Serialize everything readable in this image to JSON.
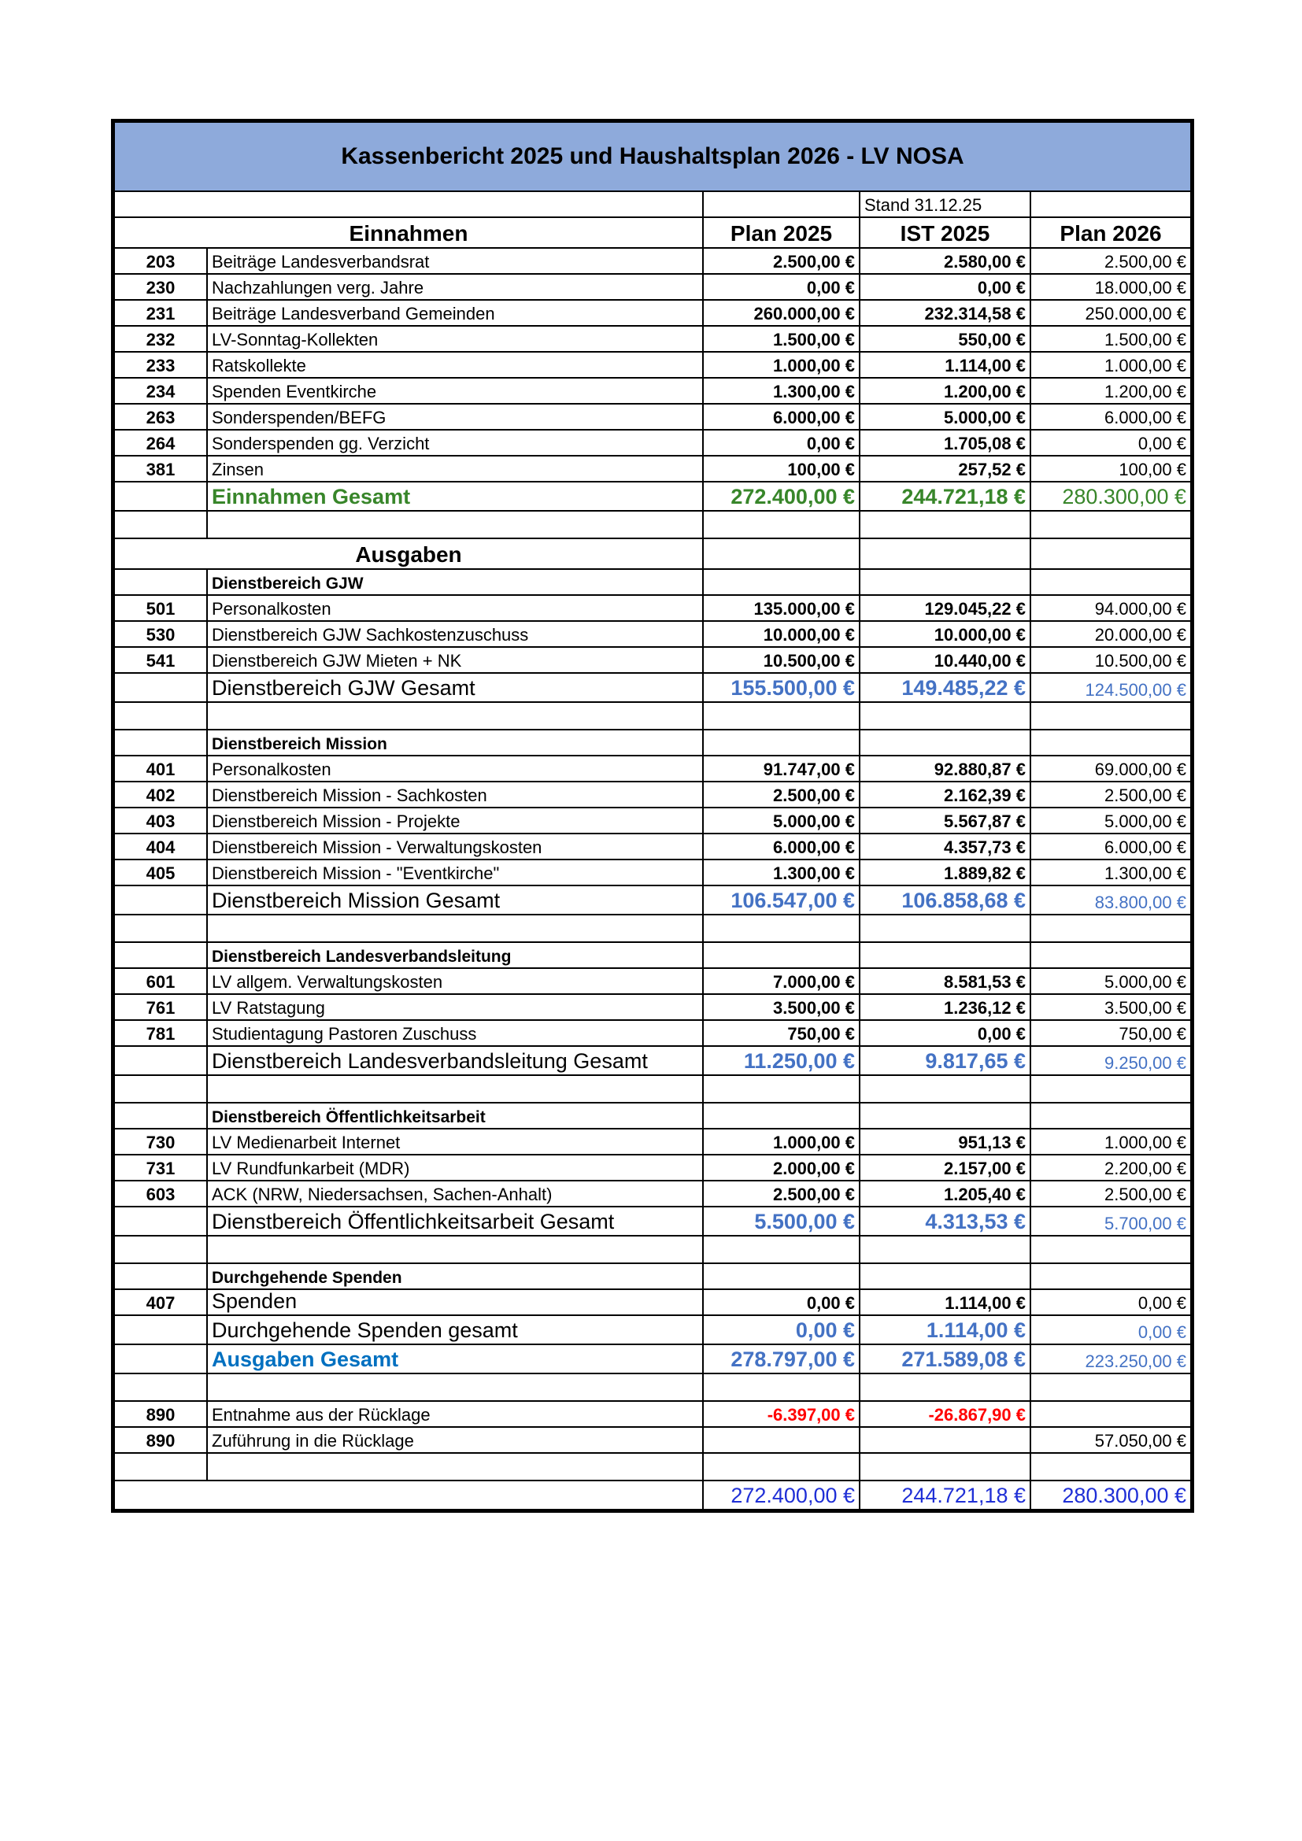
{
  "title": "Kassenbericht 2025 und Haushaltsplan 2026 - LV NOSA",
  "stand": "Stand 31.12.25",
  "columns": {
    "plan2025": "Plan 2025",
    "ist2025": "IST 2025",
    "plan2026": "Plan 2026"
  },
  "colors": {
    "header_bg": "#8eaadb",
    "income_total": "#38862a",
    "subtotal": "#4472c4",
    "expense_total_label": "#0070c0",
    "negative": "#ff0000",
    "grand_total": "#1f2fd6"
  },
  "rows": [
    {
      "type": "hdr",
      "desc": "Einnahmen",
      "plan2025": "Plan 2025",
      "ist2025": "IST 2025",
      "plan2026": "Plan 2026"
    },
    {
      "type": "item",
      "code": "203",
      "desc": "Beiträge Landesverbandsrat",
      "plan2025": "2.500,00 €",
      "ist2025": "2.580,00 €",
      "plan2026": "2.500,00 €"
    },
    {
      "type": "item",
      "code": "230",
      "desc": "Nachzahlungen verg. Jahre",
      "plan2025": "0,00 €",
      "ist2025": "0,00 €",
      "plan2026": "18.000,00 €"
    },
    {
      "type": "item",
      "code": "231",
      "desc": "Beiträge Landesverband Gemeinden",
      "plan2025": "260.000,00 €",
      "ist2025": "232.314,58 €",
      "plan2026": "250.000,00 €"
    },
    {
      "type": "item",
      "code": "232",
      "desc": "LV-Sonntag-Kollekten",
      "plan2025": "1.500,00 €",
      "ist2025": "550,00 €",
      "plan2026": "1.500,00 €"
    },
    {
      "type": "item",
      "code": "233",
      "desc": "Ratskollekte",
      "plan2025": "1.000,00 €",
      "ist2025": "1.114,00 €",
      "plan2026": "1.000,00 €"
    },
    {
      "type": "item",
      "code": "234",
      "desc": "Spenden Eventkirche",
      "plan2025": "1.300,00 €",
      "ist2025": "1.200,00 €",
      "plan2026": "1.200,00 €"
    },
    {
      "type": "item",
      "code": "263",
      "desc": "Sonderspenden/BEFG",
      "plan2025": "6.000,00 €",
      "ist2025": "5.000,00 €",
      "plan2026": "6.000,00 €"
    },
    {
      "type": "item",
      "code": "264",
      "desc": "Sonderspenden gg. Verzicht",
      "plan2025": "0,00 €",
      "ist2025": "1.705,08 €",
      "plan2026": "0,00 €"
    },
    {
      "type": "item",
      "code": "381",
      "desc": "Zinsen",
      "plan2025": "100,00 €",
      "ist2025": "257,52 €",
      "plan2026": "100,00 €"
    },
    {
      "type": "ein",
      "desc": "Einnahmen Gesamt",
      "plan2025": "272.400,00 €",
      "ist2025": "244.721,18 €",
      "plan2026": "280.300,00 €"
    },
    {
      "type": "blank"
    },
    {
      "type": "hdr",
      "desc": "Ausgaben"
    },
    {
      "type": "section",
      "desc": "Dienstbereich GJW"
    },
    {
      "type": "item",
      "code": "501",
      "desc": "Personalkosten",
      "plan2025": "135.000,00 €",
      "ist2025": "129.045,22 €",
      "plan2026": "94.000,00 €"
    },
    {
      "type": "item",
      "code": "530",
      "desc": "Dienstbereich GJW Sachkostenzuschuss",
      "plan2025": "10.000,00 €",
      "ist2025": "10.000,00 €",
      "plan2026": "20.000,00 €"
    },
    {
      "type": "item",
      "code": "541",
      "desc": "Dienstbereich GJW Mieten + NK",
      "plan2025": "10.500,00 €",
      "ist2025": "10.440,00 €",
      "plan2026": "10.500,00 €"
    },
    {
      "type": "subtotal",
      "desc": "Dienstbereich GJW Gesamt",
      "plan2025": "155.500,00 €",
      "ist2025": "149.485,22 €",
      "plan2026": "124.500,00 €"
    },
    {
      "type": "blank"
    },
    {
      "type": "section",
      "desc": "Dienstbereich Mission"
    },
    {
      "type": "item",
      "code": "401",
      "desc": "Personalkosten",
      "plan2025": "91.747,00 €",
      "ist2025": "92.880,87 €",
      "plan2026": "69.000,00 €"
    },
    {
      "type": "item",
      "code": "402",
      "desc": "Dienstbereich Mission - Sachkosten",
      "plan2025": "2.500,00 €",
      "ist2025": "2.162,39 €",
      "plan2026": "2.500,00 €"
    },
    {
      "type": "item",
      "code": "403",
      "desc": "Dienstbereich Mission - Projekte",
      "plan2025": "5.000,00 €",
      "ist2025": "5.567,87 €",
      "plan2026": "5.000,00 €"
    },
    {
      "type": "item",
      "code": "404",
      "desc": "Dienstbereich Mission - Verwaltungskosten",
      "plan2025": "6.000,00 €",
      "ist2025": "4.357,73 €",
      "plan2026": "6.000,00 €"
    },
    {
      "type": "item",
      "code": "405",
      "desc": "Dienstbereich Mission  - \"Eventkirche\"",
      "plan2025": "1.300,00 €",
      "ist2025": "1.889,82 €",
      "plan2026": "1.300,00 €"
    },
    {
      "type": "subtotal",
      "desc": "Dienstbereich Mission Gesamt",
      "plan2025": "106.547,00 €",
      "ist2025": "106.858,68 €",
      "plan2026": "83.800,00 €"
    },
    {
      "type": "blank"
    },
    {
      "type": "section",
      "desc": "Dienstbereich Landesverbandsleitung"
    },
    {
      "type": "item",
      "code": "601",
      "desc": "LV allgem. Verwaltungskosten",
      "plan2025": "7.000,00 €",
      "ist2025": "8.581,53 €",
      "plan2026": "5.000,00 €"
    },
    {
      "type": "item",
      "code": "761",
      "desc": "LV Ratstagung",
      "plan2025": "3.500,00 €",
      "ist2025": "1.236,12 €",
      "plan2026": "3.500,00 €"
    },
    {
      "type": "item",
      "code": "781",
      "desc": "Studientagung Pastoren Zuschuss",
      "plan2025": "750,00 €",
      "ist2025": "0,00 €",
      "plan2026": "750,00 €"
    },
    {
      "type": "subtotal",
      "desc": "Dienstbereich Landesverbandsleitung Gesamt",
      "plan2025": "11.250,00 €",
      "ist2025": "9.817,65 €",
      "plan2026": "9.250,00 €"
    },
    {
      "type": "blank"
    },
    {
      "type": "section",
      "desc": "Dienstbereich Öffentlichkeitsarbeit"
    },
    {
      "type": "item",
      "code": "730",
      "desc": "LV Medienarbeit Internet",
      "plan2025": "1.000,00 €",
      "ist2025": "951,13 €",
      "plan2026": "1.000,00 €"
    },
    {
      "type": "item",
      "code": "731",
      "desc": "LV Rundfunkarbeit (MDR)",
      "plan2025": "2.000,00 €",
      "ist2025": "2.157,00 €",
      "plan2026": "2.200,00 €"
    },
    {
      "type": "item",
      "code": "603",
      "desc": "ACK (NRW, Niedersachsen, Sachen-Anhalt)",
      "plan2025": "2.500,00 €",
      "ist2025": "1.205,40 €",
      "plan2026": "2.500,00 €"
    },
    {
      "type": "subtotal",
      "desc": "Dienstbereich Öffentlichkeitsarbeit Gesamt",
      "plan2025": "5.500,00 €",
      "ist2025": "4.313,53 €",
      "plan2026": "5.700,00 €"
    },
    {
      "type": "blank"
    },
    {
      "type": "section",
      "desc": "Durchgehende Spenden"
    },
    {
      "type": "item big",
      "code": "407",
      "desc": "Spenden",
      "plan2025": "0,00 €",
      "ist2025": "1.114,00 €",
      "plan2026": "0,00 €"
    },
    {
      "type": "subtotal",
      "desc": "Durchgehende Spenden gesamt",
      "plan2025": "0,00 €",
      "ist2025": "1.114,00 €",
      "plan2026": "0,00 €"
    },
    {
      "type": "aus",
      "desc": "Ausgaben Gesamt",
      "plan2025": "278.797,00 €",
      "ist2025": "271.589,08 €",
      "plan2026": "223.250,00 €"
    },
    {
      "type": "blank"
    },
    {
      "type": "item neg",
      "code": "890",
      "desc": "Entnahme aus der Rücklage",
      "plan2025": "-6.397,00 €",
      "ist2025": "-26.867,90 €",
      "plan2026": ""
    },
    {
      "type": "item",
      "code": "890",
      "desc": "Zuführung in die Rücklage",
      "plan2025": "",
      "ist2025": "",
      "plan2026": "57.050,00 €"
    },
    {
      "type": "blank"
    },
    {
      "type": "total",
      "desc": "",
      "plan2025": "272.400,00 €",
      "ist2025": "244.721,18 €",
      "plan2026": "280.300,00 €"
    }
  ]
}
